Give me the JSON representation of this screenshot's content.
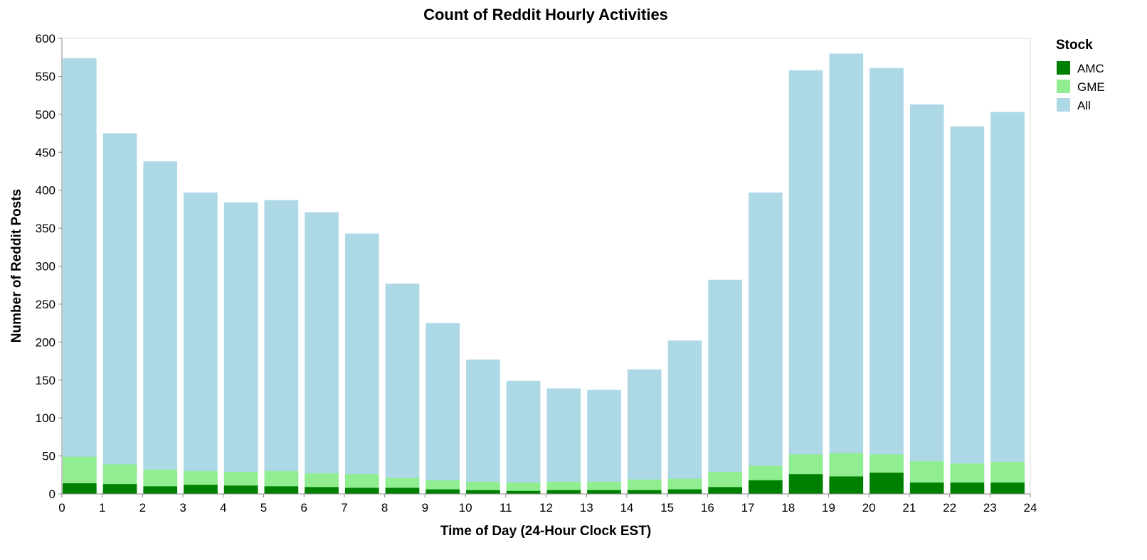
{
  "chart_data": {
    "type": "bar",
    "title": "Count of Reddit Hourly Activities",
    "xlabel": "Time of Day (24-Hour Clock EST)",
    "ylabel": "Number of Reddit Posts",
    "xlim": [
      0,
      24
    ],
    "ylim": [
      0,
      600
    ],
    "x_ticks": [
      0,
      1,
      2,
      3,
      4,
      5,
      6,
      7,
      8,
      9,
      10,
      11,
      12,
      13,
      14,
      15,
      16,
      17,
      18,
      19,
      20,
      21,
      22,
      23,
      24
    ],
    "y_ticks": [
      0,
      50,
      100,
      150,
      200,
      250,
      300,
      350,
      400,
      450,
      500,
      550,
      600
    ],
    "grid": false,
    "legend_position": "right",
    "legend_title": "Stock",
    "categories": [
      0,
      1,
      2,
      3,
      4,
      5,
      6,
      7,
      8,
      9,
      10,
      11,
      12,
      13,
      14,
      15,
      16,
      17,
      18,
      19,
      20,
      21,
      22,
      23
    ],
    "series": [
      {
        "name": "All",
        "color": "#add8e6",
        "values": [
          574,
          475,
          438,
          397,
          384,
          387,
          371,
          343,
          277,
          225,
          177,
          149,
          139,
          137,
          164,
          202,
          282,
          397,
          558,
          580,
          561,
          513,
          484,
          503
        ]
      },
      {
        "name": "GME",
        "color": "#90ee90",
        "values": [
          49,
          39,
          32,
          30,
          29,
          30,
          27,
          26,
          21,
          18,
          16,
          15,
          16,
          16,
          19,
          20,
          29,
          37,
          52,
          54,
          52,
          43,
          40,
          42
        ]
      },
      {
        "name": "AMC",
        "color": "#008000",
        "values": [
          14,
          13,
          10,
          12,
          11,
          10,
          9,
          8,
          8,
          6,
          5,
          4,
          5,
          5,
          5,
          6,
          9,
          18,
          26,
          23,
          28,
          15,
          15,
          15
        ]
      }
    ],
    "legend_order": [
      "AMC",
      "GME",
      "All"
    ]
  }
}
